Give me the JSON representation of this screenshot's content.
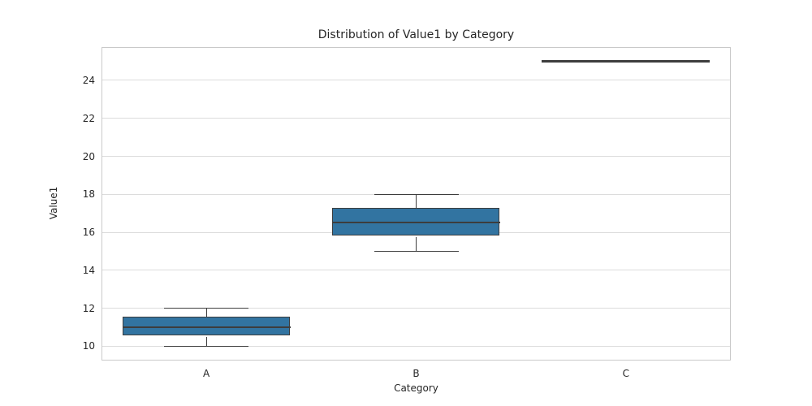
{
  "chart_data": {
    "type": "box",
    "title": "Distribution of Value1 by Category",
    "xlabel": "Category",
    "ylabel": "Value1",
    "categories": [
      "A",
      "B",
      "C"
    ],
    "series": [
      {
        "category": "A",
        "whislo": 10,
        "q1": 10.5,
        "med": 11,
        "q3": 11.5,
        "whishi": 12,
        "fliers": []
      },
      {
        "category": "B",
        "whislo": 15,
        "q1": 15.75,
        "med": 16.5,
        "q3": 17.25,
        "whishi": 18,
        "fliers": []
      },
      {
        "category": "C",
        "whislo": 25,
        "q1": 25,
        "med": 25,
        "q3": 25,
        "whishi": 25,
        "fliers": []
      }
    ],
    "ylim": [
      9.25,
      25.75
    ],
    "yticks": [
      10,
      12,
      14,
      16,
      18,
      20,
      22,
      24
    ],
    "grid": true,
    "legend": null,
    "style": {
      "box_fill": "#3274a1",
      "line_color": "#3d3d3d",
      "grid_color": "#dcdcdc",
      "spine_color": "#c9c9c9",
      "text_color": "#262626",
      "background": "#ffffff"
    }
  }
}
